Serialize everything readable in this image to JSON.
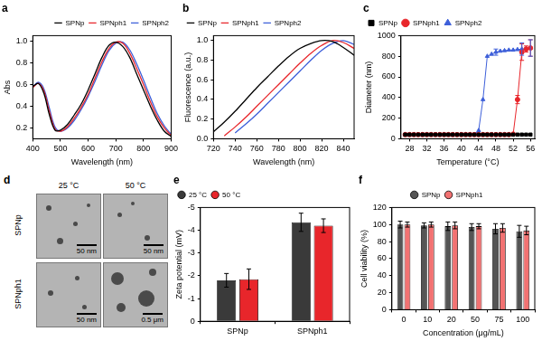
{
  "chart_data": [
    {
      "type": "line",
      "title": "a",
      "x_label": "Wavelength (nm)",
      "y_label": "Abs",
      "x": [
        400,
        420,
        440,
        460,
        480,
        500,
        525,
        550,
        575,
        600,
        625,
        650,
        675,
        700,
        725,
        750,
        775,
        800,
        825,
        850,
        875,
        900
      ],
      "series": [
        {
          "name": "SPNp",
          "color": "#000000",
          "marker": "none",
          "line_style": "solid",
          "values": [
            0.58,
            0.61,
            0.52,
            0.32,
            0.18,
            0.18,
            0.23,
            0.32,
            0.42,
            0.55,
            0.7,
            0.85,
            0.96,
            0.99,
            0.95,
            0.85,
            0.7,
            0.55,
            0.4,
            0.27,
            0.17,
            0.12
          ]
        },
        {
          "name": "SPNph1",
          "color": "#e8262b",
          "marker": "none",
          "line_style": "solid",
          "values": [
            0.57,
            0.61,
            0.54,
            0.35,
            0.19,
            0.17,
            0.21,
            0.29,
            0.39,
            0.51,
            0.66,
            0.81,
            0.93,
            0.99,
            0.98,
            0.89,
            0.75,
            0.6,
            0.44,
            0.3,
            0.2,
            0.13
          ]
        },
        {
          "name": "SPNph2",
          "color": "#3d5fd9",
          "marker": "none",
          "line_style": "solid",
          "values": [
            0.58,
            0.62,
            0.56,
            0.38,
            0.21,
            0.17,
            0.2,
            0.27,
            0.37,
            0.49,
            0.63,
            0.78,
            0.91,
            0.98,
            0.99,
            0.92,
            0.79,
            0.64,
            0.48,
            0.33,
            0.22,
            0.14
          ]
        }
      ],
      "xlim": [
        400,
        900
      ],
      "xticks": [
        400,
        500,
        600,
        700,
        800,
        900
      ],
      "ylim": [
        0.1,
        1.05
      ],
      "yticks": [
        0.2,
        0.4,
        0.6,
        0.8,
        {
          "value": 1,
          "label": "1.0"
        }
      ],
      "grid": false,
      "legend": "upper right"
    },
    {
      "type": "line",
      "title": "b",
      "x_label": "Wavelength (nm)",
      "y_label": "Fluorescence (a.u.)",
      "x": [
        720,
        730,
        740,
        750,
        760,
        770,
        780,
        790,
        800,
        810,
        820,
        830,
        840,
        850
      ],
      "series": [
        {
          "name": "SPNp",
          "color": "#000000",
          "marker": "none",
          "line_style": "solid",
          "values": [
            0.07,
            0.17,
            0.28,
            0.4,
            0.52,
            0.63,
            0.74,
            0.84,
            0.92,
            0.97,
            1.0,
            0.99,
            0.93,
            0.85
          ]
        },
        {
          "name": "SPNph1",
          "color": "#e8262b",
          "marker": "none",
          "line_style": "solid",
          "values": [
            null,
            0.03,
            0.12,
            0.22,
            0.33,
            0.44,
            0.55,
            0.66,
            0.77,
            0.87,
            0.95,
            1.0,
            0.98,
            0.92
          ]
        },
        {
          "name": "SPNph2",
          "color": "#3d5fd9",
          "marker": "none",
          "line_style": "solid",
          "values": [
            null,
            null,
            0.06,
            0.15,
            0.25,
            0.36,
            0.47,
            0.58,
            0.69,
            0.8,
            0.9,
            0.97,
            1.0,
            0.96
          ]
        }
      ],
      "xlim": [
        720,
        850
      ],
      "xticks": [
        720,
        740,
        760,
        780,
        800,
        820,
        840
      ],
      "ylim": [
        0,
        1.05
      ],
      "yticks": [
        {
          "value": 0,
          "label": "0.0"
        },
        0.2,
        0.4,
        0.6,
        0.8,
        {
          "value": 1,
          "label": "1.0"
        }
      ],
      "grid": false,
      "legend": "upper left"
    },
    {
      "type": "line",
      "title": "c",
      "x_label": "Temperature (°C)",
      "y_label": "Diameter (nm)",
      "x": [
        27,
        28,
        29,
        30,
        31,
        32,
        33,
        34,
        35,
        36,
        37,
        38,
        39,
        40,
        41,
        42,
        43,
        44,
        45,
        46,
        47,
        48,
        49,
        50,
        51,
        52,
        53,
        54,
        55,
        56
      ],
      "series": [
        {
          "name": "SPNp",
          "color": "#000000",
          "marker": "square",
          "line_style": "solid",
          "values": [
            40,
            40,
            40,
            40,
            40,
            40,
            40,
            40,
            40,
            40,
            40,
            40,
            40,
            40,
            40,
            40,
            40,
            40,
            40,
            40,
            40,
            40,
            40,
            40,
            40,
            40,
            40,
            40,
            40,
            40
          ]
        },
        {
          "name": "SPNph1",
          "color": "#e8262b",
          "marker": "circle",
          "line_style": "solid",
          "values": [
            40,
            40,
            40,
            40,
            40,
            40,
            40,
            40,
            40,
            40,
            40,
            40,
            40,
            40,
            40,
            40,
            40,
            40,
            40,
            40,
            40,
            40,
            40,
            40,
            40,
            45,
            380,
            840,
            870,
            880
          ],
          "errors": [
            null,
            null,
            null,
            null,
            null,
            null,
            null,
            null,
            null,
            null,
            null,
            null,
            null,
            null,
            null,
            null,
            null,
            null,
            null,
            null,
            null,
            null,
            null,
            null,
            null,
            null,
            40,
            80,
            30,
            80
          ]
        },
        {
          "name": "SPNph2",
          "color": "#3d5fd9",
          "marker": "triangle",
          "line_style": "solid",
          "values": [
            40,
            40,
            40,
            40,
            40,
            40,
            40,
            40,
            40,
            40,
            40,
            40,
            40,
            40,
            40,
            40,
            40,
            80,
            380,
            800,
            820,
            840,
            850,
            855,
            860,
            860,
            865,
            870,
            875,
            880
          ],
          "errors": [
            null,
            null,
            null,
            null,
            null,
            null,
            null,
            null,
            null,
            null,
            null,
            null,
            null,
            null,
            null,
            null,
            null,
            null,
            null,
            null,
            null,
            30,
            null,
            null,
            null,
            null,
            null,
            60,
            null,
            80
          ]
        }
      ],
      "xlim": [
        26,
        57
      ],
      "xticks": [
        28,
        32,
        36,
        40,
        44,
        48,
        52,
        56
      ],
      "ylim": [
        0,
        1000
      ],
      "yticks": [
        0,
        200,
        400,
        600,
        800,
        1000
      ],
      "grid": false,
      "legend": "upper left"
    },
    {
      "type": "bar",
      "title": "e",
      "y_label": "Zeta potential (mV)",
      "categories": [
        "SPNp",
        "SPNph1"
      ],
      "series": [
        {
          "name": "25 °C",
          "color": "#3a3a3a",
          "values": [
            -1.8,
            -4.35
          ],
          "errors": [
            0.3,
            0.4
          ]
        },
        {
          "name": "50 °C",
          "color": "#e8262b",
          "values": [
            -1.85,
            -4.2
          ],
          "errors": [
            0.45,
            0.3
          ]
        }
      ],
      "ylim": [
        0,
        -5
      ],
      "yticks": [
        0,
        -1,
        -2,
        -3,
        -4,
        -5
      ],
      "grid": false,
      "legend": "upper left"
    },
    {
      "type": "bar",
      "title": "f",
      "x_label": "Concentration (μg/mL)",
      "y_label": "Cell viability (%)",
      "categories": [
        "0",
        "10",
        "20",
        "50",
        "75",
        "100"
      ],
      "series": [
        {
          "name": "SPNp",
          "color": "#555555",
          "values": [
            100,
            99,
            98,
            97,
            95,
            92
          ],
          "errors": [
            4,
            3,
            5,
            4,
            6,
            7
          ]
        },
        {
          "name": "SPNph1",
          "color": "#f27272",
          "values": [
            100,
            100,
            99,
            98,
            96,
            93
          ],
          "errors": [
            3,
            3,
            4,
            3,
            5,
            5
          ]
        }
      ],
      "ylim": [
        0,
        120
      ],
      "yticks": [
        0,
        20,
        40,
        60,
        80,
        100,
        120
      ],
      "grid": false,
      "legend": "upper center"
    }
  ],
  "images": {
    "title": "d",
    "columns": [
      "25 °C",
      "50 °C"
    ],
    "rows": [
      "SPNp",
      "SPNph1"
    ],
    "scale_bars": [
      [
        "50 nm",
        "50 nm"
      ],
      [
        "50 nm",
        "0.5 μm"
      ]
    ]
  }
}
